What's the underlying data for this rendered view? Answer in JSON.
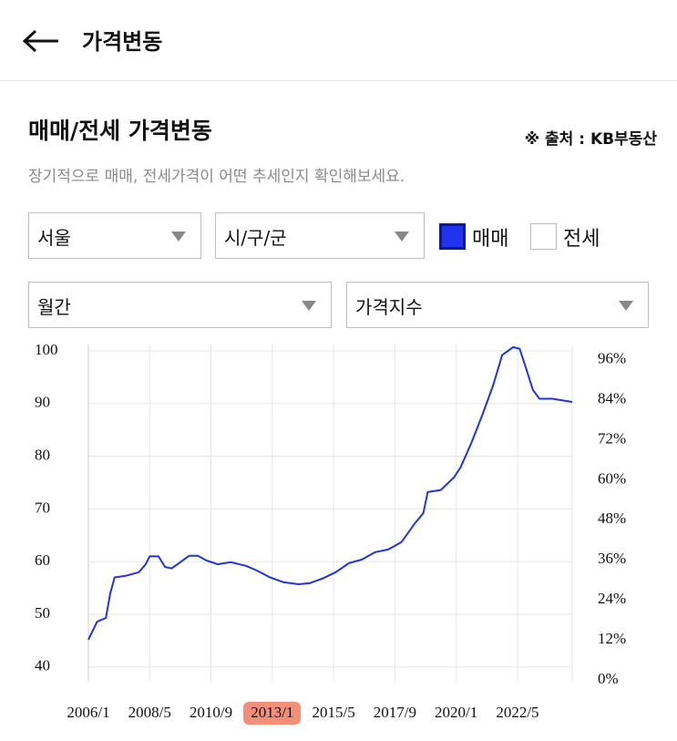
{
  "header": {
    "title": "가격변동"
  },
  "section": {
    "title": "매매/전세 가격변동",
    "source": "※ 출처 : KB부동산",
    "subtitle": "장기적으로 매매, 전세가격이 어떤 추세인지 확인해보세요."
  },
  "filters": {
    "region": "서울",
    "district": "시/구/군",
    "period": "월간",
    "metric": "가격지수"
  },
  "checkboxes": [
    {
      "label": "매매",
      "checked": true
    },
    {
      "label": "전세",
      "checked": false
    }
  ],
  "chart_data": {
    "type": "line",
    "x": [
      "2006/1",
      "2006/5",
      "2006/9",
      "2006/11",
      "2007/1",
      "2007/6",
      "2007/12",
      "2008/3",
      "2008/5",
      "2008/9",
      "2008/12",
      "2009/3",
      "2009/7",
      "2009/11",
      "2010/3",
      "2010/7",
      "2010/12",
      "2011/6",
      "2012/1",
      "2012/6",
      "2012/12",
      "2013/6",
      "2014/1",
      "2014/6",
      "2014/12",
      "2015/6",
      "2015/12",
      "2016/6",
      "2016/12",
      "2017/6",
      "2017/12",
      "2018/6",
      "2018/10",
      "2018/12",
      "2019/6",
      "2019/12",
      "2020/3",
      "2020/8",
      "2021/1",
      "2021/6",
      "2021/10",
      "2022/3",
      "2022/6",
      "2022/9",
      "2022/12",
      "2023/3",
      "2023/9",
      "2024/3",
      "2024/6"
    ],
    "series": [
      {
        "name": "매매",
        "color": "#2233dd",
        "values": [
          45.2,
          48.6,
          49.3,
          54,
          57,
          57.3,
          58,
          59.4,
          61,
          61,
          59,
          58.7,
          59.9,
          61.1,
          61.1,
          60.2,
          59.5,
          59.9,
          59.2,
          58.3,
          57,
          56.1,
          55.7,
          55.9,
          56.8,
          58,
          59.7,
          60.4,
          61.8,
          62.3,
          63.7,
          67.2,
          69.2,
          73.2,
          73.6,
          76,
          77.9,
          82.6,
          87.9,
          93.6,
          99.2,
          100.7,
          100.4,
          96.6,
          92.6,
          90.9,
          90.9,
          90.5,
          90.3
        ]
      }
    ],
    "xticks": [
      "2006/1",
      "2008/5",
      "2010/9",
      "2013/1",
      "2015/5",
      "2017/9",
      "2020/1",
      "2022/5"
    ],
    "ylim": [
      37.2,
      101.2
    ],
    "yticks": [
      40,
      50,
      60,
      70,
      80,
      90,
      100
    ],
    "y2lim": [
      -0.5,
      100.5
    ],
    "y2ticks": [
      {
        "value": 0,
        "label": "0%"
      },
      {
        "value": 12,
        "label": "12%"
      },
      {
        "value": 24,
        "label": "24%"
      },
      {
        "value": 36,
        "label": "36%"
      },
      {
        "value": 48,
        "label": "48%"
      },
      {
        "value": 60,
        "label": "60%"
      },
      {
        "value": 72,
        "label": "72%"
      },
      {
        "value": 84,
        "label": "84%"
      },
      {
        "value": 96,
        "label": "96%"
      }
    ],
    "grid": true
  }
}
